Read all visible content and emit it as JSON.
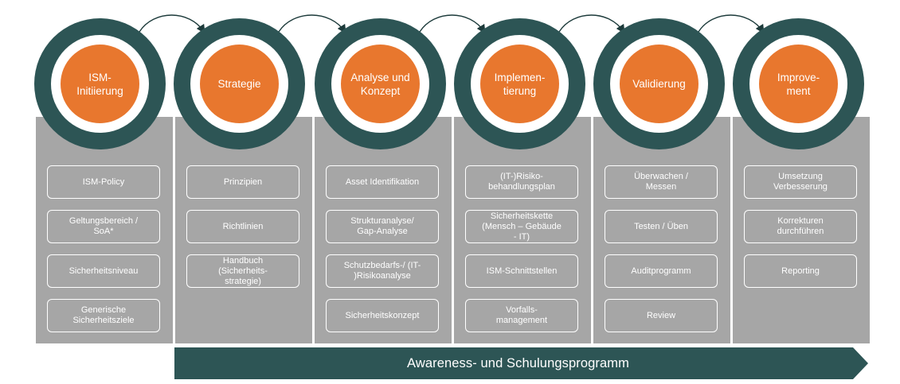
{
  "phases": [
    {
      "title": "ISM-\nInitiierung",
      "items": [
        "ISM-Policy",
        "Geltungsbereich /\nSoA*",
        "Sicherheitsniveau",
        "Generische\nSicherheitsziele"
      ]
    },
    {
      "title": "Strategie",
      "items": [
        "Prinzipien",
        "Richtlinien",
        "Handbuch\n(Sicherheits-\nstrategie)"
      ]
    },
    {
      "title": "Analyse und\nKonzept",
      "items": [
        "Asset Identifikation",
        "Strukturanalyse/\nGap-Analyse",
        "Schutzbedarfs-/ (IT-\n)Risikoanalyse",
        "Sicherheitskonzept"
      ]
    },
    {
      "title": "Implemen-\ntierung",
      "items": [
        "(IT-)Risiko-\nbehandlungsplan",
        "Sicherheitskette\n(Mensch – Gebäude\n- IT)",
        "ISM-Schnittstellen",
        "Vorfalls-\nmanagement"
      ]
    },
    {
      "title": "Validierung",
      "items": [
        "Überwachen /\nMessen",
        "Testen / Üben",
        "Auditprogramm",
        "Review"
      ]
    },
    {
      "title": "Improve-\nment",
      "items": [
        "Umsetzung\nVerbesserung",
        "Korrekturen\ndurchführen",
        "Reporting"
      ]
    }
  ],
  "banner": {
    "label": "Awareness- und Schulungsprogramm"
  },
  "colors": {
    "ring": "#2d5555",
    "core": "#e8772e",
    "panel": "#a6a6a6",
    "banner": "#2d5555"
  }
}
